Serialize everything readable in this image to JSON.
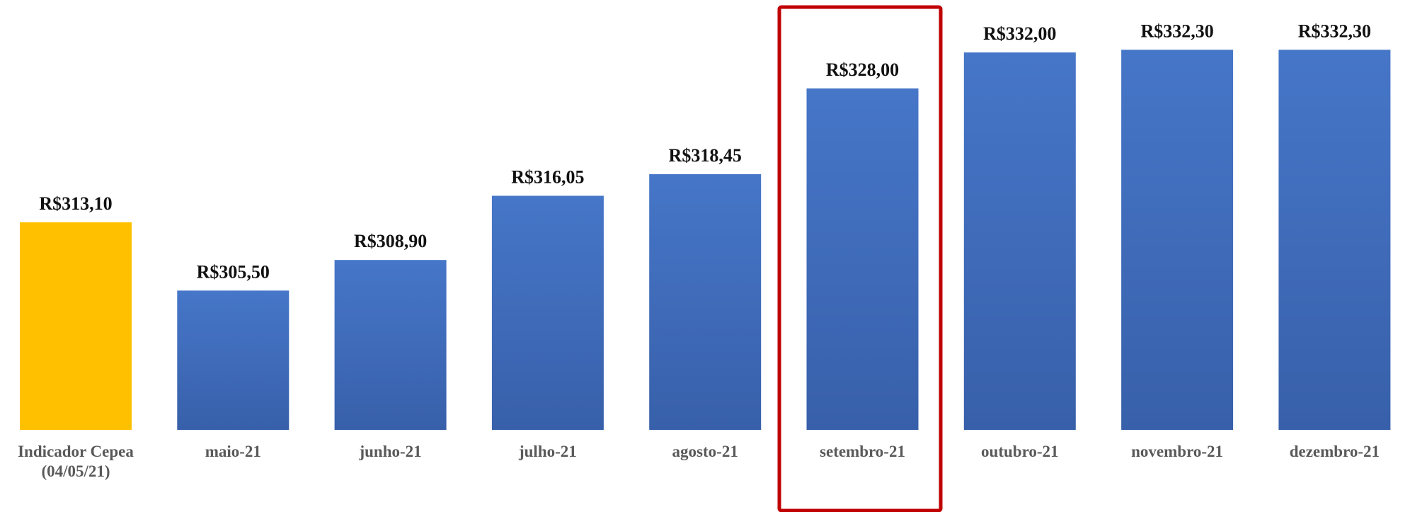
{
  "chart_data": {
    "type": "bar",
    "categories": [
      "Indicador Cepea\n(04/05/21)",
      "maio-21",
      "junho-21",
      "julho-21",
      "agosto-21",
      "setembro-21",
      "outubro-21",
      "novembro-21",
      "dezembro-21"
    ],
    "values": [
      313.1,
      305.5,
      308.9,
      316.05,
      318.45,
      328.0,
      332.0,
      332.3,
      332.3
    ],
    "value_labels": [
      "R$313,10",
      "R$305,50",
      "R$308,90",
      "R$316,05",
      "R$318,45",
      "R$328,00",
      "R$332,00",
      "R$332,30",
      "R$332,30"
    ],
    "colors": [
      "#ffc000",
      "#4472c4",
      "#4472c4",
      "#4472c4",
      "#4472c4",
      "#4472c4",
      "#4472c4",
      "#4472c4",
      "#4472c4"
    ],
    "ylim": [
      290,
      335
    ]
  }
}
